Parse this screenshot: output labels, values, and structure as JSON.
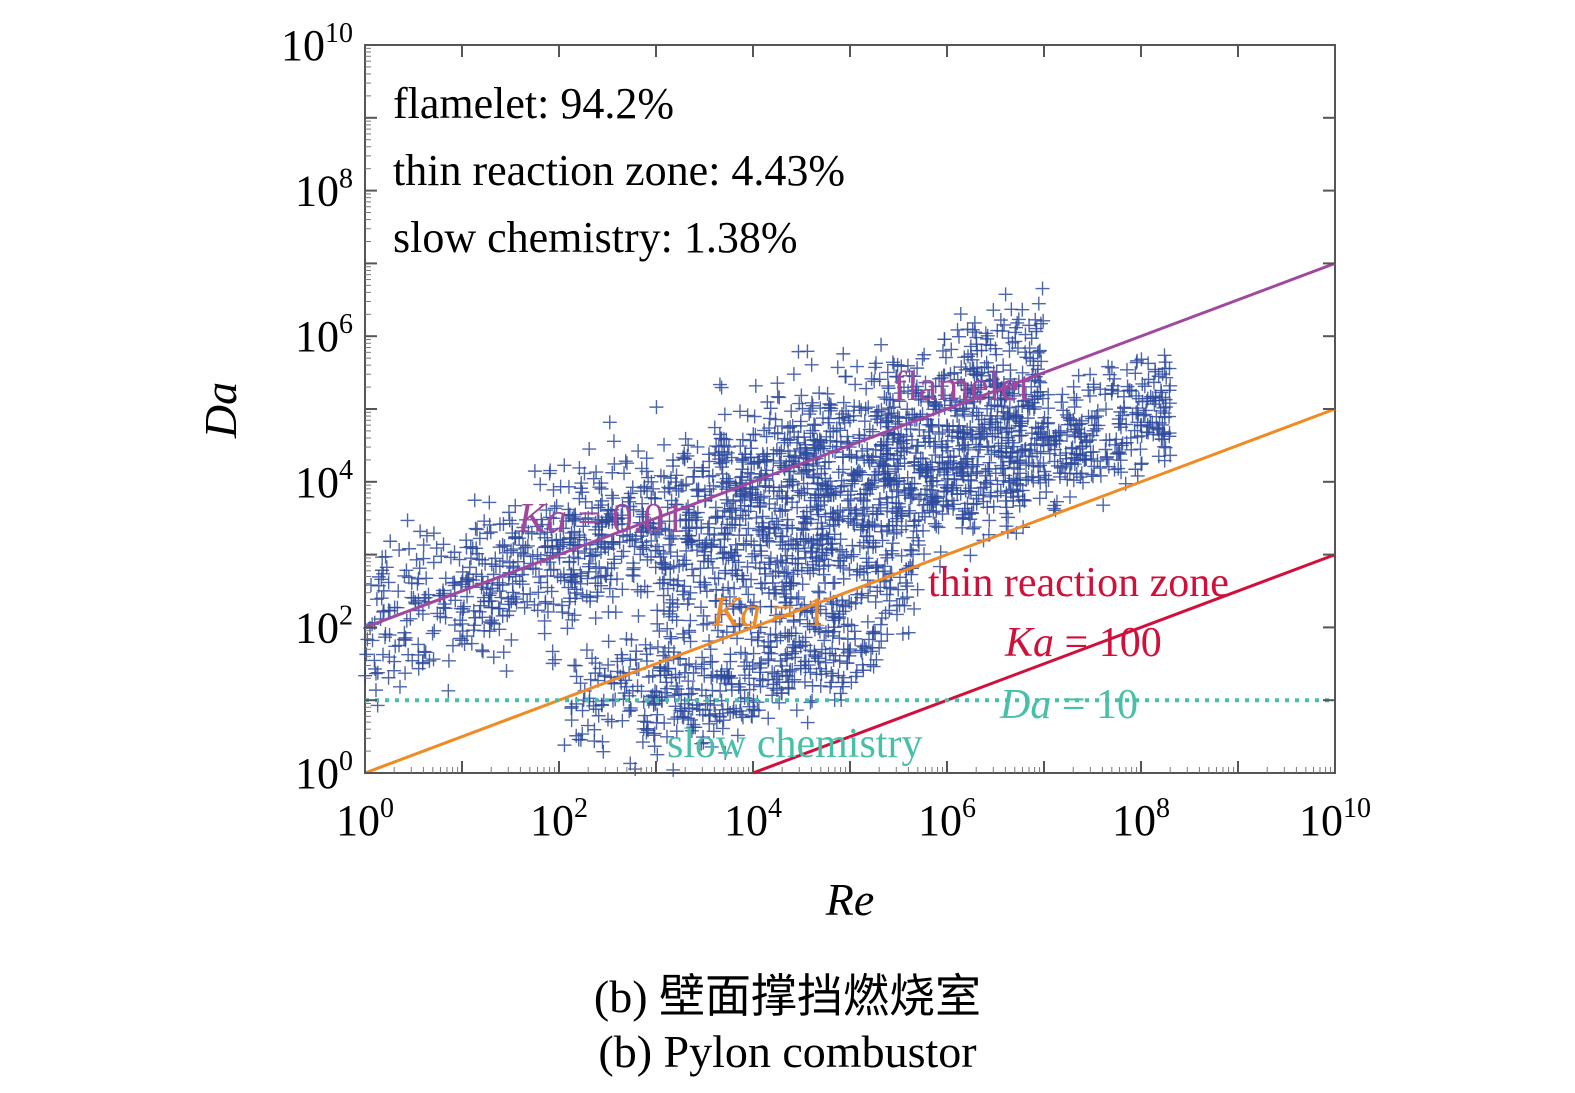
{
  "chart_data": {
    "type": "scatter",
    "xlabel": "Re",
    "ylabel": "Da",
    "xscale": "log",
    "yscale": "log",
    "xlim": [
      1,
      10000000000.0
    ],
    "ylim": [
      1,
      10000000000.0
    ],
    "x_tick_exponents": [
      0,
      2,
      4,
      6,
      8,
      10
    ],
    "y_tick_exponents": [
      0,
      2,
      4,
      6,
      8,
      10
    ],
    "annotations": {
      "flamelet_pct": "flamelet: 94.2%",
      "thin_pct": "thin reaction zone: 4.43%",
      "slow_pct": "slow chemistry: 1.38%",
      "flamelet_region": "flamelet",
      "thin_region": "thin reaction zone",
      "slow_region": "slow chemistry",
      "ka001_prefix": "Ka",
      "ka001_suffix": " = 0.01",
      "ka1_prefix": "Ka",
      "ka1_suffix": " = 1",
      "ka100_prefix": "Ka",
      "ka100_suffix": " = 100",
      "da10_prefix": "Da",
      "da10_suffix": " = 10"
    },
    "reference_lines": [
      {
        "name": "Ka = 0.01",
        "kind": "power",
        "coef": 100,
        "exp": 0.5,
        "color": "#a0479e"
      },
      {
        "name": "Ka = 1",
        "kind": "power",
        "coef": 1,
        "exp": 0.5,
        "color": "#f08a24"
      },
      {
        "name": "Ka = 100",
        "kind": "power",
        "coef": 0.01,
        "exp": 0.5,
        "color": "#d0103a"
      },
      {
        "name": "Da = 10",
        "kind": "horizontal",
        "y": 10,
        "color": "#48c0a8"
      }
    ],
    "scatter_clusters": [
      {
        "x_range": [
          1,
          10000000.0
        ],
        "log_da_offset": 2.0,
        "spread": 0.55,
        "n": 1500
      },
      {
        "x_range": [
          1000.0,
          200000000.0
        ],
        "log_da_offset": 0.9,
        "spread": 0.4,
        "n": 900
      },
      {
        "x_range": [
          100.0,
          500000.0
        ],
        "log_da_offset": -0.2,
        "spread": 0.35,
        "n": 350
      },
      {
        "x_range": [
          500.0,
          200000.0
        ],
        "log_da_offset": -0.9,
        "spread": 0.3,
        "n": 200
      }
    ],
    "marker": "+",
    "marker_color": "#2e4a9c",
    "grid": false,
    "legend": "none"
  },
  "caption": {
    "line1": "(b) 壁面撑挡燃烧室",
    "line2": "(b) Pylon combustor"
  }
}
